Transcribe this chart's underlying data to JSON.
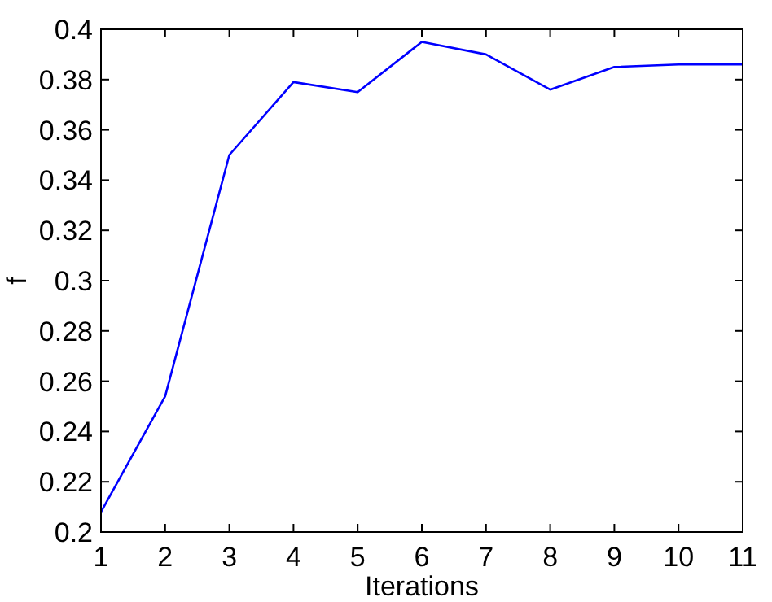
{
  "chart_data": {
    "type": "line",
    "xlabel": "Iterations",
    "ylabel": "f",
    "x": [
      1,
      2,
      3,
      4,
      5,
      6,
      7,
      8,
      9,
      10,
      11
    ],
    "series": [
      {
        "color": "#0000ff",
        "values": [
          0.208,
          0.254,
          0.35,
          0.379,
          0.375,
          0.395,
          0.39,
          0.376,
          0.385,
          0.386,
          0.386
        ]
      }
    ],
    "xlim": [
      1,
      11
    ],
    "xticks": [
      1,
      2,
      3,
      4,
      5,
      6,
      7,
      8,
      9,
      10,
      11
    ],
    "ylim": [
      0.2,
      0.4
    ],
    "yticks": [
      0.2,
      0.22,
      0.24,
      0.26,
      0.28,
      0.3,
      0.32,
      0.34,
      0.36,
      0.38,
      0.4
    ],
    "grid": false,
    "marker": "none",
    "line_style": "solid"
  }
}
